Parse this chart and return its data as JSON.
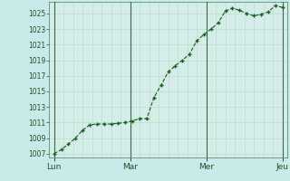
{
  "background_color": "#c8eae8",
  "plot_bg_color": "#d4ede8",
  "line_color": "#1a5c1a",
  "marker_color": "#1a5c1a",
  "grid_color_minor": "#b8d8cc",
  "grid_color_major": "#98c0b0",
  "vline_color": "#3a6a4a",
  "ylim": [
    1006.5,
    1026.5
  ],
  "yticks": [
    1007,
    1009,
    1011,
    1013,
    1015,
    1017,
    1019,
    1021,
    1023,
    1025
  ],
  "day_labels": [
    "Lun",
    "Mar",
    "Mer",
    "Jeu"
  ],
  "day_positions": [
    0,
    32,
    64,
    96
  ],
  "xlim": [
    -2,
    98
  ],
  "x": [
    0,
    3,
    6,
    9,
    12,
    15,
    18,
    21,
    24,
    27,
    30,
    33,
    36,
    39,
    42,
    45,
    48,
    51,
    54,
    57,
    60,
    63,
    66,
    69,
    72,
    75,
    78,
    81,
    84,
    87,
    90,
    93,
    96
  ],
  "y": [
    1007.0,
    1007.5,
    1008.2,
    1009.0,
    1010.0,
    1010.7,
    1010.8,
    1010.8,
    1010.8,
    1010.9,
    1011.0,
    1011.2,
    1011.5,
    1011.5,
    1014.2,
    1015.8,
    1017.5,
    1018.3,
    1019.0,
    1019.8,
    1021.5,
    1022.3,
    1023.0,
    1023.8,
    1025.3,
    1025.7,
    1025.4,
    1025.0,
    1024.7,
    1024.9,
    1025.2,
    1026.0,
    1025.8
  ]
}
